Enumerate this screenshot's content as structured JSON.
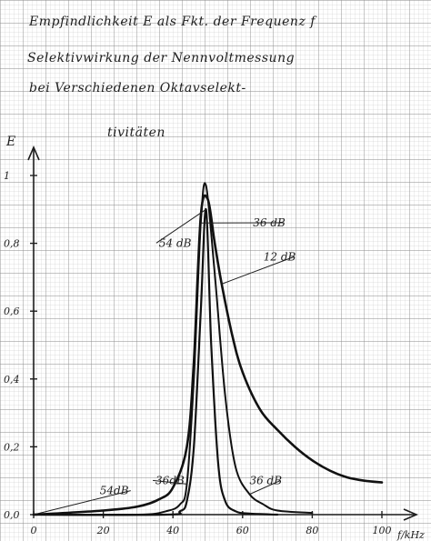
{
  "chart_data": {
    "type": "line",
    "title_lines": [
      "Empfindlichkeit E als Fkt. der Frequenz f",
      "Selektivwirkung der Nennvoltmessung",
      "bei Verschiedenen Oktavselekt-",
      "tivitäten"
    ],
    "ylabel": "E",
    "xlabel": "f/kHz",
    "xlim": [
      0,
      100
    ],
    "ylim": [
      0,
      1
    ],
    "x_ticks": [
      "0",
      "20",
      "40",
      "60",
      "80",
      "100"
    ],
    "y_ticks": [
      "0,0",
      "0,2",
      "0,4",
      "0,6",
      "0,8",
      "1"
    ],
    "grid": true,
    "series": [
      {
        "name": "12 dB",
        "x": [
          0,
          20,
          30,
          36,
          40,
          44,
          46,
          48,
          50,
          52,
          54,
          57,
          60,
          65,
          70,
          75,
          80,
          85,
          90,
          95,
          100
        ],
        "y": [
          0.0,
          0.012,
          0.024,
          0.045,
          0.08,
          0.2,
          0.45,
          0.88,
          0.93,
          0.8,
          0.68,
          0.53,
          0.42,
          0.31,
          0.25,
          0.2,
          0.16,
          0.13,
          0.11,
          0.1,
          0.095
        ]
      },
      {
        "name": "36 dB",
        "x": [
          0,
          30,
          38,
          42,
          44,
          46,
          48,
          49.5,
          52,
          55,
          58,
          62,
          66,
          70,
          80
        ],
        "y": [
          0.0,
          0.0,
          0.01,
          0.03,
          0.09,
          0.4,
          0.86,
          0.97,
          0.71,
          0.35,
          0.14,
          0.06,
          0.03,
          0.012,
          0.005
        ]
      },
      {
        "name": "54 dB",
        "x": [
          0,
          38,
          42,
          44,
          46,
          48,
          49.5,
          51,
          53,
          55,
          58,
          62,
          70
        ],
        "y": [
          0.0,
          0.0,
          0.01,
          0.04,
          0.2,
          0.6,
          0.9,
          0.5,
          0.15,
          0.04,
          0.01,
          0.003,
          0.0
        ]
      }
    ],
    "annotations": [
      {
        "text": "36 dB",
        "x": 63,
        "y": 0.85,
        "points_to": "36 dB"
      },
      {
        "text": "12 dB",
        "x": 66,
        "y": 0.75,
        "points_to": "12 dB"
      },
      {
        "text": "54 dB",
        "x": 36,
        "y": 0.79,
        "points_to": "54 dB"
      },
      {
        "text": "54dB",
        "x": 19,
        "y": 0.06,
        "points_to": "54 dB"
      },
      {
        "text": "36dB",
        "x": 35,
        "y": 0.09,
        "points_to": "36 dB"
      },
      {
        "text": "36 dB",
        "x": 62,
        "y": 0.09,
        "points_to": "36 dB"
      }
    ]
  }
}
